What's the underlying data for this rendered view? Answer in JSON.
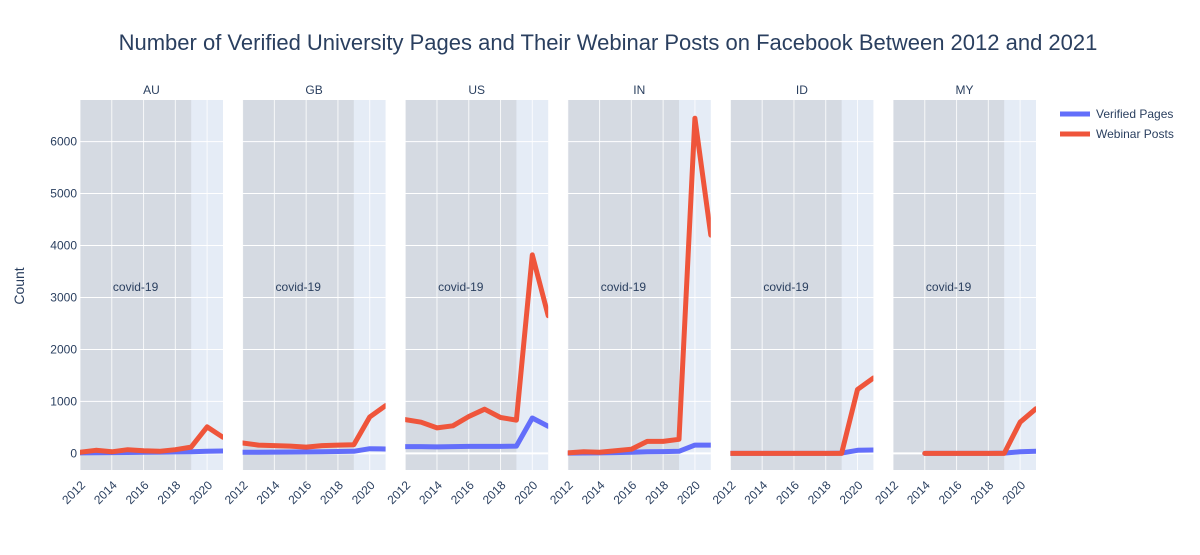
{
  "chart_data": {
    "type": "line",
    "title": "Number of Verified University Pages and Their Webinar Posts on Facebook Between 2012 and 2021",
    "ylabel": "Count",
    "ylim": [
      -320,
      6800
    ],
    "xlim": [
      2012,
      2021
    ],
    "x_ticks": [
      2012,
      2014,
      2016,
      2018,
      2020
    ],
    "y_ticks": [
      0,
      1000,
      2000,
      3000,
      4000,
      5000,
      6000
    ],
    "grid": true,
    "legend_position": "top-right",
    "annotation": {
      "text": "covid-19",
      "x_start": 2012,
      "x_end": 2019,
      "y": 3200
    },
    "series_styles": [
      {
        "name": "Verified Pages",
        "color": "#636efa"
      },
      {
        "name": "Webinar Posts",
        "color": "#ef553b"
      }
    ],
    "panels": [
      {
        "label": "AU",
        "series": [
          {
            "name": "Verified Pages",
            "x": [
              2012,
              2013,
              2014,
              2015,
              2016,
              2017,
              2018,
              2019,
              2020,
              2021
            ],
            "values": [
              10,
              12,
              14,
              16,
              20,
              24,
              28,
              32,
              40,
              45
            ]
          },
          {
            "name": "Webinar Posts",
            "x": [
              2012,
              2013,
              2014,
              2015,
              2016,
              2017,
              2018,
              2019,
              2020,
              2021
            ],
            "values": [
              20,
              60,
              30,
              70,
              50,
              40,
              70,
              120,
              510,
              310
            ]
          }
        ]
      },
      {
        "label": "GB",
        "series": [
          {
            "name": "Verified Pages",
            "x": [
              2012,
              2013,
              2014,
              2015,
              2016,
              2017,
              2018,
              2019,
              2020,
              2021
            ],
            "values": [
              20,
              22,
              24,
              26,
              28,
              32,
              36,
              40,
              90,
              85
            ]
          },
          {
            "name": "Webinar Posts",
            "x": [
              2012,
              2013,
              2014,
              2015,
              2016,
              2017,
              2018,
              2019,
              2020,
              2021
            ],
            "values": [
              200,
              160,
              150,
              140,
              120,
              150,
              160,
              165,
              700,
              920
            ]
          }
        ]
      },
      {
        "label": "US",
        "series": [
          {
            "name": "Verified Pages",
            "x": [
              2012,
              2013,
              2014,
              2015,
              2016,
              2017,
              2018,
              2019,
              2020,
              2021
            ],
            "values": [
              130,
              130,
              125,
              130,
              135,
              135,
              135,
              140,
              680,
              520
            ]
          },
          {
            "name": "Webinar Posts",
            "x": [
              2012,
              2013,
              2014,
              2015,
              2016,
              2017,
              2018,
              2019,
              2020,
              2021
            ],
            "values": [
              650,
              600,
              490,
              530,
              710,
              850,
              690,
              640,
              3820,
              2650
            ]
          }
        ]
      },
      {
        "label": "IN",
        "series": [
          {
            "name": "Verified Pages",
            "x": [
              2012,
              2013,
              2014,
              2015,
              2016,
              2017,
              2018,
              2019,
              2020,
              2021
            ],
            "values": [
              5,
              8,
              10,
              15,
              20,
              30,
              35,
              40,
              160,
              160
            ]
          },
          {
            "name": "Webinar Posts",
            "x": [
              2012,
              2013,
              2014,
              2015,
              2016,
              2017,
              2018,
              2019,
              2020,
              2021
            ],
            "values": [
              10,
              30,
              20,
              50,
              80,
              230,
              230,
              270,
              6450,
              4200
            ]
          }
        ]
      },
      {
        "label": "ID",
        "series": [
          {
            "name": "Verified Pages",
            "x": [
              2012,
              2013,
              2014,
              2015,
              2016,
              2017,
              2018,
              2019,
              2020,
              2021
            ],
            "values": [
              0,
              0,
              0,
              0,
              0,
              0,
              0,
              5,
              60,
              65
            ]
          },
          {
            "name": "Webinar Posts",
            "x": [
              2012,
              2013,
              2014,
              2015,
              2016,
              2017,
              2018,
              2019,
              2020,
              2021
            ],
            "values": [
              0,
              0,
              0,
              0,
              0,
              0,
              0,
              0,
              1230,
              1450
            ]
          }
        ]
      },
      {
        "label": "MY",
        "series": [
          {
            "name": "Verified Pages",
            "x": [
              2014,
              2015,
              2016,
              2017,
              2018,
              2019,
              2020,
              2021
            ],
            "values": [
              0,
              0,
              0,
              0,
              0,
              5,
              30,
              40
            ]
          },
          {
            "name": "Webinar Posts",
            "x": [
              2014,
              2015,
              2016,
              2017,
              2018,
              2019,
              2020,
              2021
            ],
            "values": [
              0,
              0,
              0,
              0,
              0,
              0,
              600,
              860
            ]
          }
        ]
      }
    ]
  }
}
